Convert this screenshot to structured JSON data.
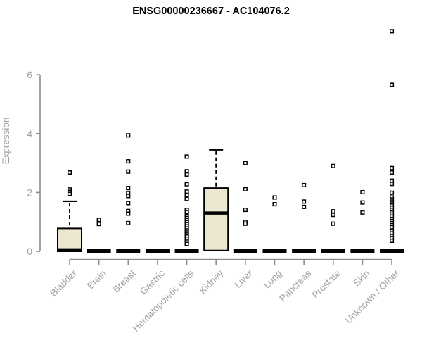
{
  "chart_data": {
    "type": "boxplot",
    "title": "ENSG00000236667 - AC104076.2",
    "ylabel": "Expression",
    "xlabel": "",
    "yticks": [
      0,
      2,
      4,
      6
    ],
    "ylim": [
      0,
      7.6
    ],
    "grid": false,
    "legend": "none",
    "colors": {
      "box_fill": "#ece7cf",
      "box_border": "#000000",
      "point": "#000000",
      "axis_line": "#8c8c8c",
      "axis_text": "#a0a0a0",
      "title_text": "#000000",
      "background": "#ffffff"
    },
    "categories": [
      "Bladder",
      "Brain",
      "Breast",
      "Gastric",
      "Hematopoietic cells",
      "Kidney",
      "Liver",
      "Lung",
      "Pancreas",
      "Prostate",
      "Skin",
      "Unknown / Other"
    ],
    "boxes": [
      {
        "category": "Bladder",
        "q1": 0,
        "median": 0.05,
        "q3": 0.78,
        "whisker_low": 0,
        "whisker_high": 1.7,
        "outliers": [
          2.68,
          2.1,
          2.02,
          1.95
        ]
      },
      {
        "category": "Brain",
        "q1": 0,
        "median": 0,
        "q3": 0,
        "whisker_low": 0,
        "whisker_high": 0,
        "outliers": [
          1.07,
          0.93
        ]
      },
      {
        "category": "Breast",
        "q1": 0,
        "median": 0,
        "q3": 0,
        "whisker_low": 0,
        "whisker_high": 0,
        "outliers": [
          3.94,
          3.06,
          2.71,
          2.15,
          1.98,
          1.88,
          1.64,
          1.37,
          1.28,
          0.96
        ]
      },
      {
        "category": "Gastric",
        "q1": 0,
        "median": 0,
        "q3": 0,
        "whisker_low": 0,
        "whisker_high": 0,
        "outliers": []
      },
      {
        "category": "Hematopoietic cells",
        "q1": 0,
        "median": 0,
        "q3": 0,
        "whisker_low": 0,
        "whisker_high": 0,
        "outliers": [
          3.22,
          2.72,
          2.61,
          2.28,
          2.03,
          1.91,
          1.78,
          1.41,
          1.33,
          1.2,
          1.13,
          1.06,
          0.99,
          0.92,
          0.85,
          0.78,
          0.71,
          0.64,
          0.57,
          0.5,
          0.43,
          0.33,
          0.25
        ]
      },
      {
        "category": "Kidney",
        "q1": 0.03,
        "median": 1.3,
        "q3": 2.15,
        "whisker_low": 0.03,
        "whisker_high": 3.45,
        "outliers": []
      },
      {
        "category": "Liver",
        "q1": 0,
        "median": 0,
        "q3": 0,
        "whisker_low": 0,
        "whisker_high": 0,
        "outliers": [
          3.0,
          2.11,
          1.41,
          1.0,
          0.94
        ]
      },
      {
        "category": "Lung",
        "q1": 0,
        "median": 0,
        "q3": 0,
        "whisker_low": 0,
        "whisker_high": 0,
        "outliers": [
          1.83,
          1.6
        ]
      },
      {
        "category": "Pancreas",
        "q1": 0,
        "median": 0,
        "q3": 0,
        "whisker_low": 0,
        "whisker_high": 0,
        "outliers": [
          2.25,
          1.69,
          1.51
        ]
      },
      {
        "category": "Prostate",
        "q1": 0,
        "median": 0,
        "q3": 0,
        "whisker_low": 0,
        "whisker_high": 0,
        "outliers": [
          2.9,
          1.36,
          1.24,
          0.94
        ]
      },
      {
        "category": "Skin",
        "q1": 0,
        "median": 0,
        "q3": 0,
        "whisker_low": 0,
        "whisker_high": 0,
        "outliers": [
          2.01,
          1.66,
          1.32
        ]
      },
      {
        "category": "Unknown / Other",
        "q1": 0,
        "median": 0,
        "q3": 0,
        "whisker_low": 0,
        "whisker_high": 0,
        "outliers": [
          7.48,
          5.66,
          2.83,
          2.68,
          2.4,
          2.29,
          1.99,
          1.83,
          1.76,
          1.69,
          1.62,
          1.55,
          1.48,
          1.41,
          1.32,
          1.25,
          1.18,
          1.1,
          1.03,
          0.96,
          0.89,
          0.82,
          0.68,
          0.61,
          0.52,
          0.45,
          0.36
        ]
      }
    ]
  }
}
